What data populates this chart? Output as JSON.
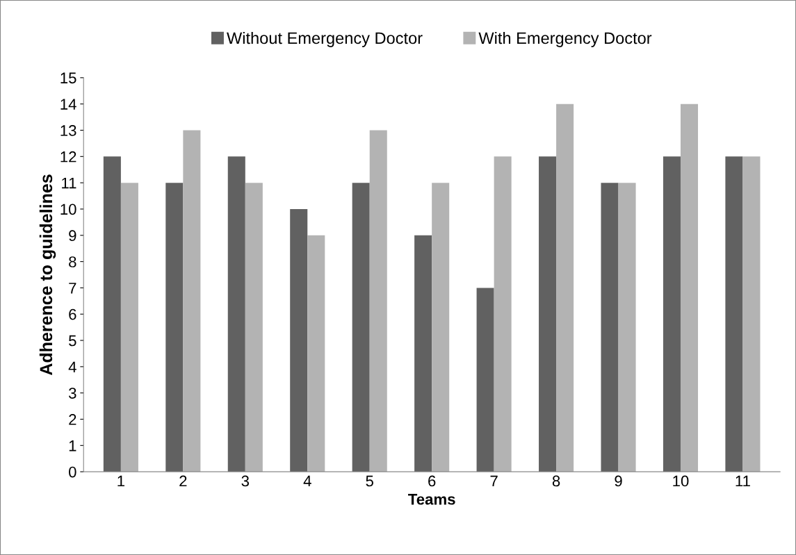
{
  "chart_data": {
    "type": "bar",
    "xlabel": "Teams",
    "ylabel": "Adherence to guidelines",
    "categories": [
      "1",
      "2",
      "3",
      "4",
      "5",
      "6",
      "7",
      "8",
      "9",
      "10",
      "11"
    ],
    "series": [
      {
        "name": "Without Emergency Doctor",
        "color": "#616161",
        "values": [
          12,
          11,
          12,
          10,
          11,
          9,
          7,
          12,
          11,
          12,
          12
        ]
      },
      {
        "name": "With Emergency Doctor",
        "color": "#b3b3b3",
        "values": [
          11,
          13,
          11,
          9,
          13,
          11,
          12,
          14,
          11,
          14,
          12
        ]
      }
    ],
    "ylim": [
      0,
      15
    ],
    "yticks": [
      0,
      1,
      2,
      3,
      4,
      5,
      6,
      7,
      8,
      9,
      10,
      11,
      12,
      13,
      14,
      15
    ],
    "grid": false,
    "legend": "top"
  }
}
